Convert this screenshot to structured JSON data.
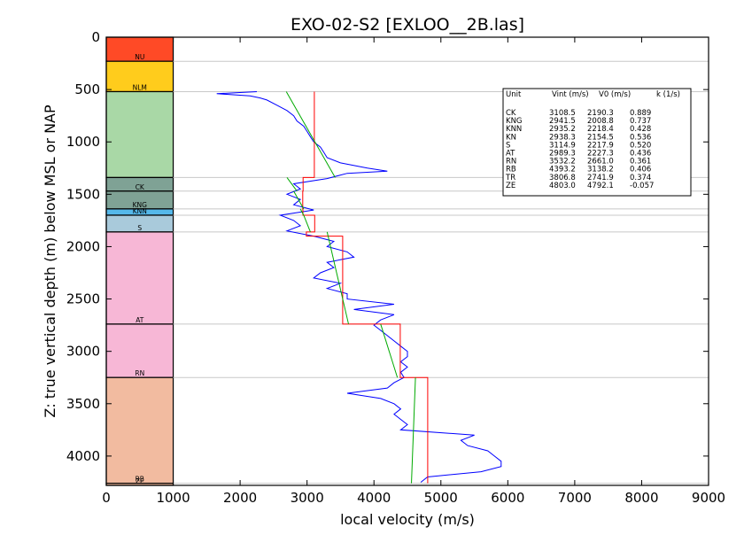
{
  "chart_data": {
    "type": "line",
    "title": "EXO-02-S2 [EXLOO__2B.las]",
    "xlabel": "local velocity (m/s)",
    "ylabel": "Z: true vertical depth (m) below MSL or NAP",
    "xlim": [
      0,
      9000
    ],
    "ylim": [
      4280,
      0
    ],
    "y_inverted": true,
    "xticks": [
      "0",
      "1000",
      "2000",
      "3000",
      "4000",
      "5000",
      "6000",
      "7000",
      "8000",
      "9000"
    ],
    "yticks": [
      "0",
      "500",
      "1000",
      "1500",
      "2000",
      "2500",
      "3000",
      "3500",
      "4000"
    ],
    "grid": false,
    "stratigraphic_column": {
      "x_range": [
        0,
        1000
      ],
      "units": [
        {
          "name": "NU",
          "top": 0,
          "base": 230,
          "color": "#ff4a26"
        },
        {
          "name": "NLM",
          "top": 230,
          "base": 520,
          "color": "#ffcc1c"
        },
        {
          "name": "",
          "top": 520,
          "base": 1340,
          "color": "#a9d8a6"
        },
        {
          "name": "CK",
          "top": 1340,
          "base": 1470,
          "color": "#7fa295"
        },
        {
          "name": "KNG",
          "top": 1470,
          "base": 1640,
          "color": "#7fa295"
        },
        {
          "name": "KNN",
          "top": 1640,
          "base": 1700,
          "color": "#55b8ea"
        },
        {
          "name": "S",
          "top": 1700,
          "base": 1860,
          "color": "#a9cadb"
        },
        {
          "name": "AT",
          "top": 1860,
          "base": 2740,
          "color": "#f7b7d6"
        },
        {
          "name": "RN",
          "top": 2740,
          "base": 3250,
          "color": "#f7b7d6"
        },
        {
          "name": "RB",
          "top": 3250,
          "base": 4260,
          "color": "#f2bba0"
        },
        {
          "name": "ZE",
          "top": 4260,
          "base": 4280,
          "color": "#f2bba0"
        }
      ]
    },
    "boundary_lines": [
      230,
      520,
      1340,
      1470,
      1640,
      1700,
      1860,
      2740,
      3250,
      4260
    ],
    "velocity_log": {
      "color": "#0000ff",
      "points": [
        [
          520,
          2250
        ],
        [
          540,
          1650
        ],
        [
          560,
          2150
        ],
        [
          580,
          2300
        ],
        [
          600,
          2400
        ],
        [
          650,
          2550
        ],
        [
          700,
          2700
        ],
        [
          750,
          2800
        ],
        [
          800,
          2850
        ],
        [
          850,
          2950
        ],
        [
          900,
          3000
        ],
        [
          950,
          3050
        ],
        [
          1000,
          3100
        ],
        [
          1050,
          3200
        ],
        [
          1100,
          3250
        ],
        [
          1150,
          3300
        ],
        [
          1200,
          3500
        ],
        [
          1250,
          3900
        ],
        [
          1280,
          4200
        ],
        [
          1300,
          3600
        ],
        [
          1350,
          3300
        ],
        [
          1400,
          2800
        ],
        [
          1450,
          2900
        ],
        [
          1500,
          2700
        ],
        [
          1550,
          2900
        ],
        [
          1600,
          2800
        ],
        [
          1650,
          3100
        ],
        [
          1700,
          2600
        ],
        [
          1750,
          2800
        ],
        [
          1800,
          2900
        ],
        [
          1850,
          2700
        ],
        [
          1900,
          3100
        ],
        [
          1950,
          3400
        ],
        [
          2000,
          3300
        ],
        [
          2050,
          3600
        ],
        [
          2100,
          3700
        ],
        [
          2150,
          3300
        ],
        [
          2200,
          3400
        ],
        [
          2250,
          3200
        ],
        [
          2300,
          3100
        ],
        [
          2350,
          3500
        ],
        [
          2400,
          3300
        ],
        [
          2450,
          3600
        ],
        [
          2500,
          3600
        ],
        [
          2550,
          4300
        ],
        [
          2600,
          3700
        ],
        [
          2650,
          4300
        ],
        [
          2700,
          4100
        ],
        [
          2750,
          4000
        ],
        [
          2800,
          4100
        ],
        [
          2850,
          4200
        ],
        [
          2900,
          4300
        ],
        [
          2950,
          4400
        ],
        [
          3000,
          4500
        ],
        [
          3050,
          4500
        ],
        [
          3100,
          4400
        ],
        [
          3150,
          4500
        ],
        [
          3200,
          4400
        ],
        [
          3250,
          4450
        ],
        [
          3300,
          4300
        ],
        [
          3350,
          4200
        ],
        [
          3400,
          3600
        ],
        [
          3450,
          4100
        ],
        [
          3500,
          4300
        ],
        [
          3550,
          4400
        ],
        [
          3600,
          4300
        ],
        [
          3650,
          4400
        ],
        [
          3700,
          4500
        ],
        [
          3750,
          4400
        ],
        [
          3800,
          5500
        ],
        [
          3850,
          5300
        ],
        [
          3900,
          5400
        ],
        [
          3950,
          5700
        ],
        [
          4000,
          5800
        ],
        [
          4050,
          5900
        ],
        [
          4100,
          5900
        ],
        [
          4150,
          5600
        ],
        [
          4200,
          4800
        ],
        [
          4250,
          4700
        ]
      ]
    },
    "interval_velocity": {
      "color": "#ff0000",
      "steps": [
        {
          "top": 520,
          "base": 1340,
          "v": 3108.5
        },
        {
          "top": 1340,
          "base": 1470,
          "v": 2941.5
        },
        {
          "top": 1470,
          "base": 1640,
          "v": 2935.2
        },
        {
          "top": 1640,
          "base": 1700,
          "v": 2938.3
        },
        {
          "top": 1700,
          "base": 1860,
          "v": 3114.9
        },
        {
          "top": 1860,
          "base": 1900,
          "v": 2989.3
        },
        {
          "top": 1900,
          "base": 2740,
          "v": 3532.2
        },
        {
          "top": 2740,
          "base": 3250,
          "v": 4393.2
        },
        {
          "top": 3250,
          "base": 4260,
          "v": 4803.0
        }
      ]
    },
    "linear_trend": {
      "color": "#00aa00",
      "segments": [
        [
          [
            520,
            2690
          ],
          [
            1340,
            3420
          ]
        ],
        [
          [
            1340,
            2700
          ],
          [
            1470,
            2850
          ]
        ],
        [
          [
            1470,
            2800
          ],
          [
            1640,
            2950
          ]
        ],
        [
          [
            1640,
            2900
          ],
          [
            1700,
            2950
          ]
        ],
        [
          [
            1700,
            2950
          ],
          [
            1860,
            3050
          ]
        ],
        [
          [
            1860,
            3300
          ],
          [
            2740,
            3620
          ]
        ],
        [
          [
            2740,
            4100
          ],
          [
            3250,
            4350
          ]
        ],
        [
          [
            3250,
            4620
          ],
          [
            4260,
            4560
          ]
        ]
      ]
    },
    "legend_table": {
      "position": "top-right",
      "header": [
        "Unit",
        "Vint (m/s)",
        "V0 (m/s)",
        "k (1/s)"
      ],
      "rows": [
        [
          "CK",
          "3108.5",
          "2190.3",
          "0.889"
        ],
        [
          "KNG",
          "2941.5",
          "2008.8",
          "0.737"
        ],
        [
          "KNN",
          "2935.2",
          "2218.4",
          "0.428"
        ],
        [
          "KN",
          "2938.3",
          "2154.5",
          "0.536"
        ],
        [
          "S",
          "3114.9",
          "2217.9",
          "0.520"
        ],
        [
          "AT",
          "2989.3",
          "2227.3",
          "0.436"
        ],
        [
          "RN",
          "3532.2",
          "2661.0",
          "0.361"
        ],
        [
          "RB",
          "4393.2",
          "3138.2",
          "0.406"
        ],
        [
          "TR",
          "3806.8",
          "2741.9",
          "0.374"
        ],
        [
          "ZE",
          "4803.0",
          "4792.1",
          "-0.057"
        ]
      ]
    }
  }
}
